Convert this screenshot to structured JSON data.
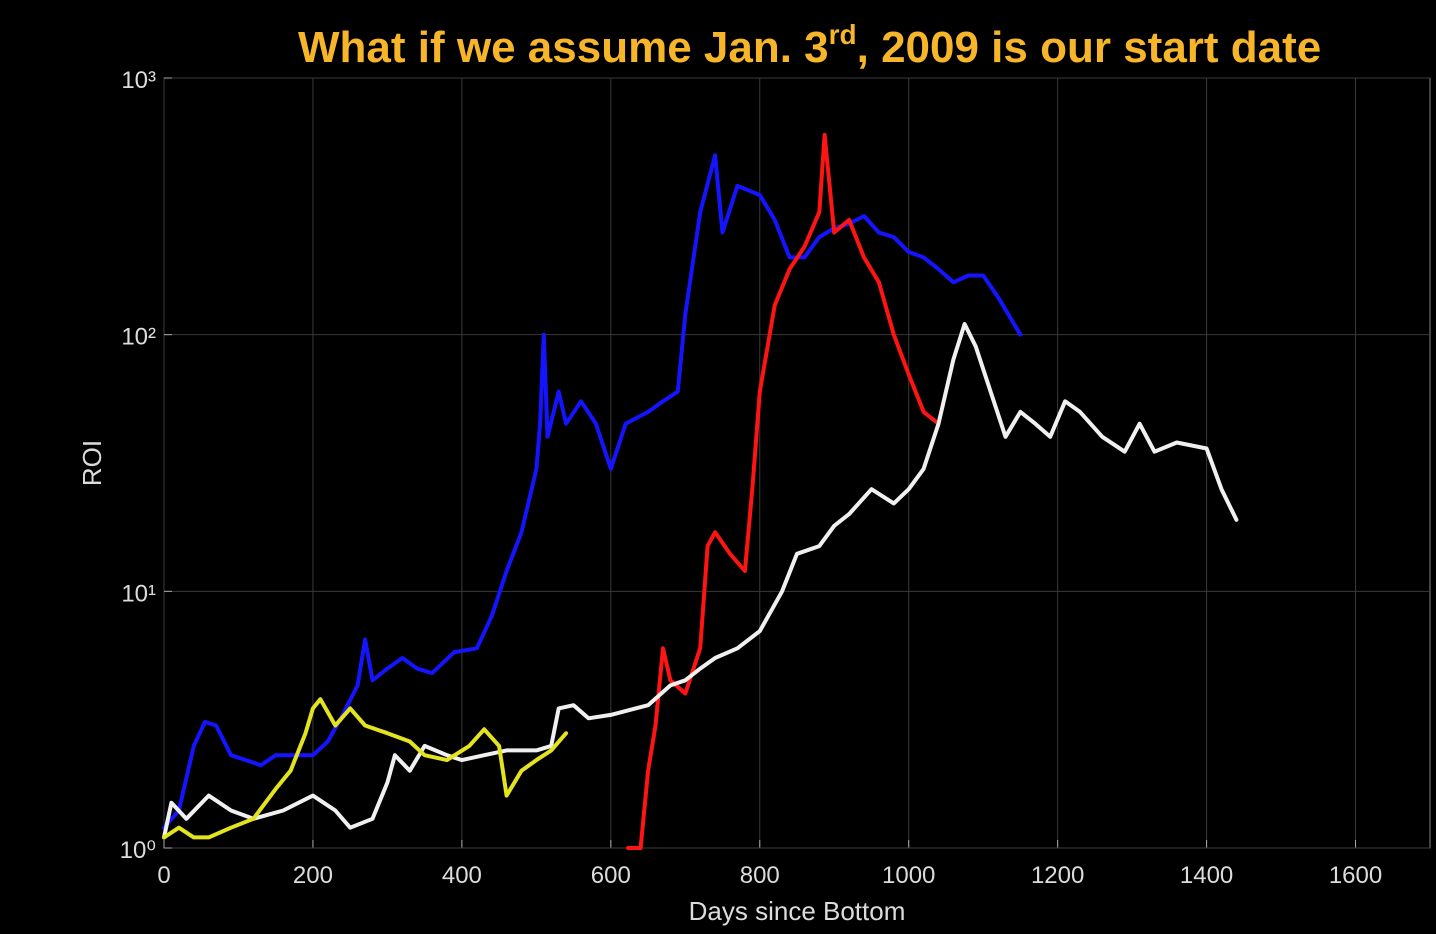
{
  "chart_data": {
    "type": "line",
    "title": [
      "What if we assume Jan. 3",
      "rd",
      ", 2009 is our start date"
    ],
    "xlabel": "Days since Bottom",
    "ylabel": "ROI",
    "xlim": [
      0,
      1700
    ],
    "ylim": [
      1,
      1000
    ],
    "yscale": "log",
    "xticks": [
      0,
      200,
      400,
      600,
      800,
      1000,
      1200,
      1400,
      1600
    ],
    "yticks": [
      {
        "value": 1,
        "label": "10⁰"
      },
      {
        "value": 10,
        "label": "10¹"
      },
      {
        "value": 100,
        "label": "10²"
      },
      {
        "value": 1000,
        "label": "10³"
      }
    ],
    "grid": true,
    "series": [
      {
        "color": "#1414ff",
        "x": [
          0,
          20,
          40,
          55,
          70,
          90,
          110,
          130,
          150,
          180,
          200,
          220,
          240,
          260,
          270,
          280,
          300,
          320,
          340,
          360,
          390,
          420,
          440,
          460,
          480,
          500,
          505,
          510,
          515,
          530,
          540,
          560,
          580,
          600,
          620,
          650,
          670,
          690,
          700,
          720,
          740,
          750,
          770,
          800,
          820,
          840,
          860,
          880,
          900,
          920,
          940,
          960,
          980,
          1000,
          1020,
          1040,
          1060,
          1080,
          1100,
          1120,
          1150
        ],
        "values": [
          1.2,
          1.4,
          2.5,
          3.1,
          3.0,
          2.3,
          2.2,
          2.1,
          2.3,
          2.3,
          2.3,
          2.6,
          3.3,
          4.3,
          6.5,
          4.5,
          5.0,
          5.5,
          5.0,
          4.8,
          5.8,
          6.0,
          8,
          12,
          17,
          30,
          45,
          100,
          40,
          60,
          45,
          55,
          45,
          30,
          45,
          50,
          55,
          60,
          120,
          300,
          500,
          250,
          380,
          350,
          280,
          200,
          200,
          240,
          260,
          270,
          290,
          250,
          240,
          210,
          200,
          180,
          160,
          170,
          170,
          140,
          100
        ]
      },
      {
        "color": "#ff1414",
        "x": [
          623,
          640,
          650,
          660,
          670,
          680,
          700,
          720,
          730,
          740,
          760,
          780,
          790,
          800,
          820,
          840,
          860,
          880,
          887,
          900,
          920,
          940,
          960,
          980,
          1000,
          1020,
          1040
        ],
        "values": [
          1.0,
          1.0,
          2.0,
          3,
          6,
          4.5,
          4,
          6,
          15,
          17,
          14,
          12,
          25,
          60,
          130,
          180,
          220,
          300,
          600,
          250,
          280,
          200,
          160,
          100,
          70,
          50,
          45
        ]
      },
      {
        "color": "#f0f0f0",
        "x": [
          0,
          10,
          30,
          60,
          90,
          120,
          160,
          200,
          230,
          250,
          280,
          300,
          310,
          330,
          350,
          380,
          400,
          430,
          460,
          500,
          520,
          530,
          550,
          570,
          600,
          650,
          680,
          700,
          720,
          740,
          770,
          800,
          830,
          850,
          880,
          900,
          920,
          950,
          980,
          1000,
          1020,
          1040,
          1060,
          1075,
          1090,
          1110,
          1130,
          1150,
          1170,
          1190,
          1210,
          1230,
          1260,
          1290,
          1310,
          1330,
          1360,
          1400,
          1420,
          1440
        ],
        "values": [
          1.1,
          1.5,
          1.3,
          1.6,
          1.4,
          1.3,
          1.4,
          1.6,
          1.4,
          1.2,
          1.3,
          1.8,
          2.3,
          2.0,
          2.5,
          2.3,
          2.2,
          2.3,
          2.4,
          2.4,
          2.5,
          3.5,
          3.6,
          3.2,
          3.3,
          3.6,
          4.3,
          4.5,
          5,
          5.5,
          6,
          7,
          10,
          14,
          15,
          18,
          20,
          25,
          22,
          25,
          30,
          45,
          80,
          110,
          90,
          60,
          40,
          50,
          45,
          40,
          55,
          50,
          40,
          35,
          45,
          35,
          38,
          36,
          25,
          19
        ]
      },
      {
        "color": "#e4e41e",
        "x": [
          0,
          20,
          40,
          60,
          90,
          120,
          150,
          170,
          190,
          200,
          210,
          230,
          250,
          270,
          300,
          330,
          350,
          380,
          410,
          430,
          450,
          460,
          480,
          500,
          520,
          540
        ],
        "values": [
          1.1,
          1.2,
          1.1,
          1.1,
          1.2,
          1.3,
          1.7,
          2.0,
          2.8,
          3.5,
          3.8,
          3.0,
          3.5,
          3.0,
          2.8,
          2.6,
          2.3,
          2.2,
          2.5,
          2.9,
          2.5,
          1.6,
          2.0,
          2.2,
          2.4,
          2.8
        ]
      }
    ]
  }
}
